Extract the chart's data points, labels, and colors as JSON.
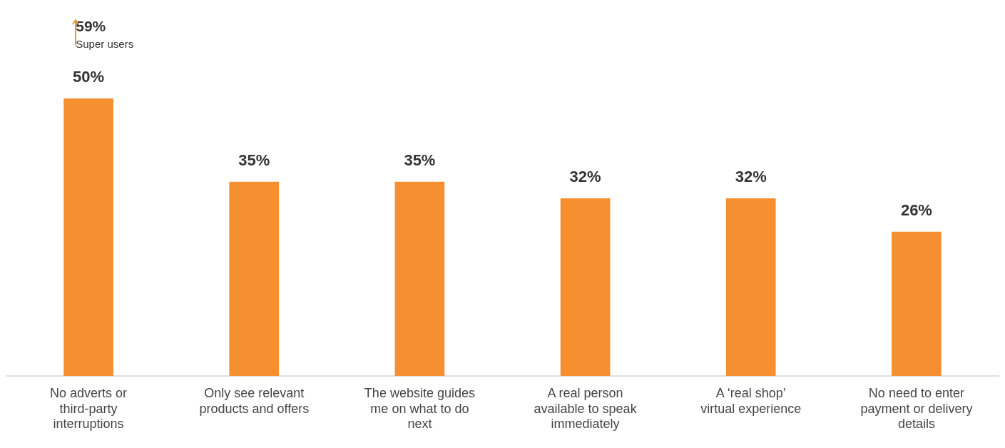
{
  "chart_data": {
    "type": "bar",
    "categories": [
      "No adverts or third-party interruptions",
      "Only see relevant products and offers",
      "The website guides me on what to do next",
      "A real person available to speak immediately",
      "A ‘real shop’ virtual experience",
      "No need to enter payment or delivery details"
    ],
    "values": [
      50,
      35,
      35,
      32,
      32,
      26
    ],
    "color": "#f58f2f",
    "value_labels": [
      "50%",
      "35%",
      "35%",
      "32%",
      "32%",
      "26%"
    ],
    "grid": false,
    "legend": false,
    "annotations": [
      "59%",
      "Super users"
    ]
  }
}
